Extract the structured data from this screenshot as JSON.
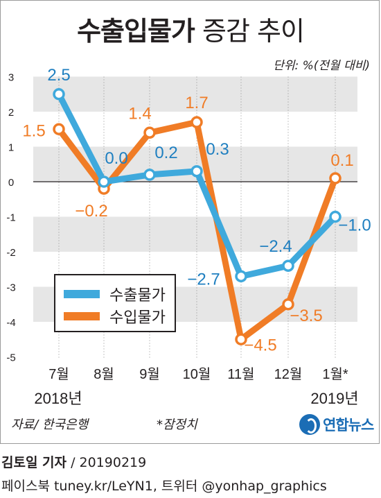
{
  "title": {
    "bold": "수출입물가",
    "light": "증감 추이"
  },
  "unit": "단위: %(전월 대비)",
  "source": "자료/ 한국은행",
  "note": "*잠정치",
  "logo": "연합뉴스",
  "byline": {
    "name": "김토일 기자",
    "date": "/ 20190219"
  },
  "social": "페이스북 tuney.kr/LeYN1, 트위터 @yonhap_graphics",
  "colors": {
    "export": "#3fa9dc",
    "import": "#f07c26",
    "band": "#e6e6e6"
  },
  "chart_data": {
    "type": "line",
    "title": "수출입물가 증감 추이",
    "categories": [
      "7월",
      "8월",
      "9월",
      "10월",
      "11월",
      "12월",
      "1월*"
    ],
    "year_labels": [
      "2018년",
      "2019년"
    ],
    "ylim": [
      -5,
      3
    ],
    "y_ticks": [
      "3",
      "2",
      "1",
      "0",
      "-1",
      "-2",
      "-3",
      "-4",
      "-5"
    ],
    "ylabel": "단위: %(전월 대비)",
    "legend_position": "bottom-left",
    "series": [
      {
        "name": "수출물가",
        "color": "#3fa9dc",
        "values": [
          2.5,
          0.0,
          0.2,
          0.3,
          -2.7,
          -2.4,
          -1.0
        ],
        "labels": [
          "2.5",
          "0.0",
          "0.2",
          "0.3",
          "-2.7",
          "-2.4",
          "-1.0"
        ]
      },
      {
        "name": "수입물가",
        "color": "#f07c26",
        "values": [
          1.5,
          -0.2,
          1.4,
          1.7,
          -4.5,
          -3.5,
          0.1
        ],
        "labels": [
          "1.5",
          "-0.2",
          "1.4",
          "1.7",
          "-4.5",
          "-3.5",
          "0.1"
        ]
      }
    ]
  }
}
